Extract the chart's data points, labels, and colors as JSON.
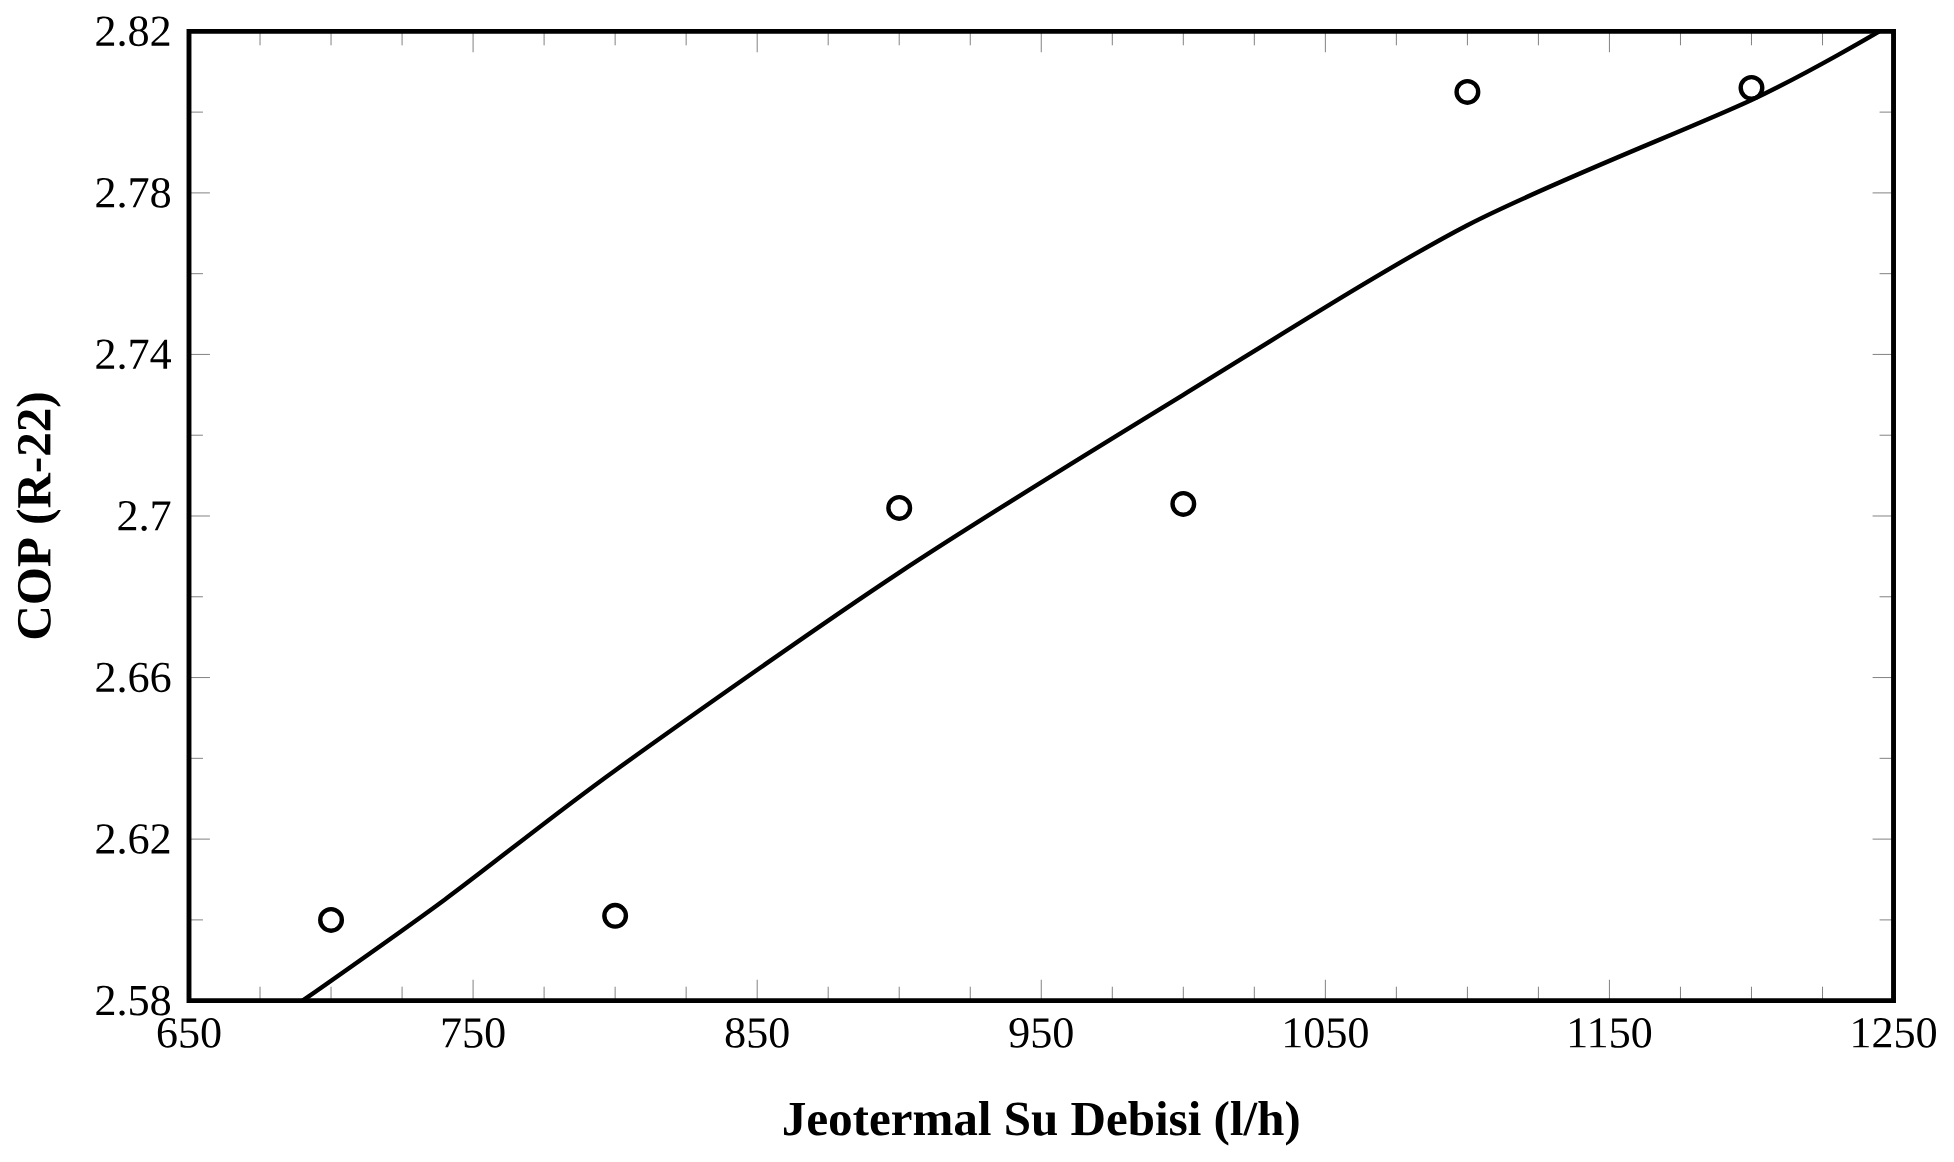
{
  "chart_data": {
    "type": "scatter",
    "xlabel": "Jeotermal Su Debisi (l/h)",
    "ylabel": "COP (R-22)",
    "xlim": [
      650,
      1250
    ],
    "ylim": [
      2.58,
      2.82
    ],
    "xticks": [
      650,
      750,
      850,
      950,
      1050,
      1150,
      1250
    ],
    "yticks": [
      2.58,
      2.62,
      2.66,
      2.7,
      2.74,
      2.78,
      2.82
    ],
    "series": [
      {
        "color": "#000000",
        "marker": "circle",
        "x": [
          700,
          800,
          900,
          1000,
          1100,
          1200
        ],
        "values": [
          2.6,
          2.601,
          2.702,
          2.703,
          2.805,
          2.806
        ]
      },
      {
        "type": "line",
        "color": "#000000",
        "marker": "none",
        "line_style": "solid",
        "x": [
          690,
          740,
          800,
          900,
          1000,
          1100,
          1200,
          1245
        ],
        "values": [
          2.58,
          2.605,
          2.637,
          2.686,
          2.73,
          2.772,
          2.803,
          2.82
        ]
      }
    ]
  }
}
